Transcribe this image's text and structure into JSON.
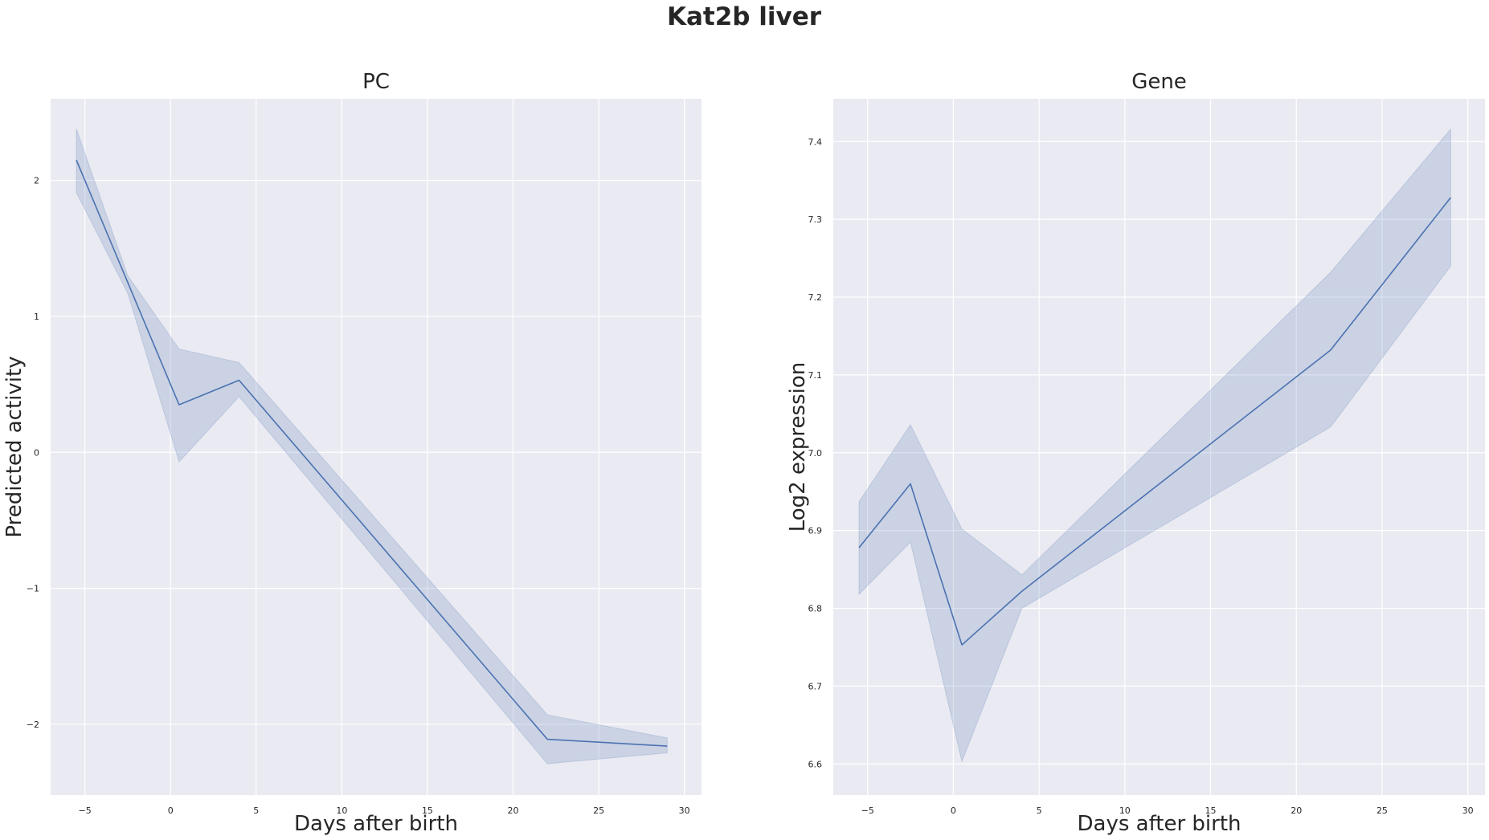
{
  "figure": {
    "title": "Kat2b liver"
  },
  "chart_data": [
    {
      "type": "line",
      "title": "PC",
      "xlabel": "Days after birth",
      "ylabel": "Predicted activity",
      "xlim": [
        -7,
        31
      ],
      "ylim": [
        -2.52,
        2.6
      ],
      "xticks": [
        -5,
        0,
        5,
        10,
        15,
        20,
        25,
        30
      ],
      "yticks": [
        -2,
        -1,
        0,
        1,
        2
      ],
      "grid": true,
      "color": "#4c72b0",
      "series": [
        {
          "x": [
            -5.5,
            -2.5,
            0.5,
            4,
            22,
            29
          ],
          "y": [
            2.15,
            1.25,
            0.35,
            0.53,
            -2.11,
            -2.16
          ],
          "ci_low": [
            1.91,
            1.17,
            -0.07,
            0.41,
            -2.29,
            -2.21
          ],
          "ci_high": [
            2.38,
            1.3,
            0.76,
            0.66,
            -1.93,
            -2.1
          ]
        }
      ]
    },
    {
      "type": "line",
      "title": "Gene",
      "xlabel": "Days after birth",
      "ylabel": "Log2 expression",
      "xlim": [
        -7,
        31
      ],
      "ylim": [
        6.56,
        7.455
      ],
      "xticks": [
        -5,
        0,
        5,
        10,
        15,
        20,
        25,
        30
      ],
      "yticks": [
        6.6,
        6.7,
        6.8,
        6.9,
        7.0,
        7.1,
        7.2,
        7.3,
        7.4
      ],
      "ytick_labels": [
        "6.6",
        "6.7",
        "6.8",
        "6.9",
        "7.0",
        "7.1",
        "7.2",
        "7.3",
        "7.4"
      ],
      "grid": true,
      "color": "#4c72b0",
      "series": [
        {
          "x": [
            -5.5,
            -2.5,
            0.5,
            4,
            22,
            29
          ],
          "y": [
            6.878,
            6.96,
            6.753,
            6.822,
            7.132,
            7.328
          ],
          "ci_low": [
            6.818,
            6.885,
            6.603,
            6.8,
            7.033,
            7.24
          ],
          "ci_high": [
            6.937,
            7.036,
            6.902,
            6.843,
            7.232,
            7.416
          ]
        }
      ]
    }
  ]
}
